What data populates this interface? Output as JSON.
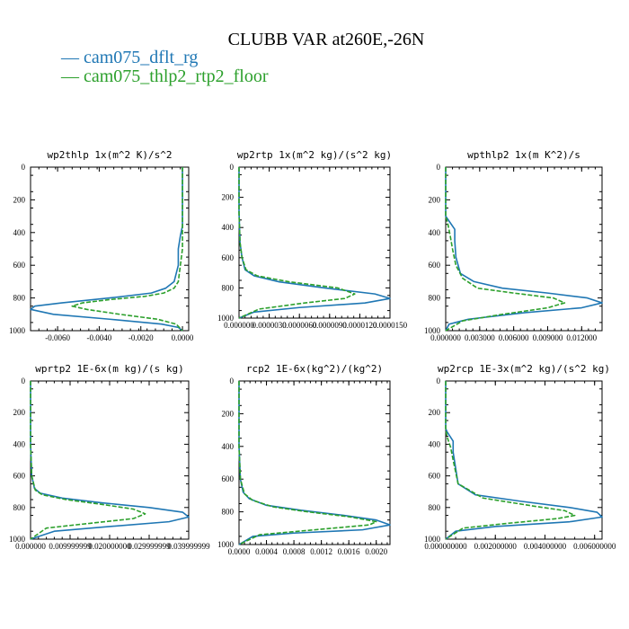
{
  "figure": {
    "title": "CLUBB VAR at260E,-26N"
  },
  "legend": [
    {
      "label": "— cam075_dflt_rg",
      "color": "#1f77b4"
    },
    {
      "label": "— cam075_thlp2_rtp2_floor",
      "color": "#2ca02c"
    }
  ],
  "chart_data": [
    {
      "type": "line",
      "title": "wp2thlp  1x(m^2 K)/s^2",
      "ylim": [
        1000,
        0
      ],
      "yticks": [
        "0",
        "200",
        "400",
        "600",
        "800",
        "1000"
      ],
      "xlim": [
        -0.0073,
        0.0003
      ],
      "xticks": [
        "-0.0060",
        "-0.0040",
        "-0.0020",
        "0.0000"
      ],
      "xtick_values": [
        -0.006,
        -0.004,
        -0.002,
        0.0
      ],
      "series": [
        {
          "name": "cam075_dflt_rg",
          "color": "#1f77b4",
          "dashed": false,
          "x": [
            0.0,
            0.0,
            0.0,
            -0.0001,
            -0.0002,
            -0.0002,
            -0.0004,
            -0.0008,
            -0.0015,
            -0.0035,
            -0.0058,
            -0.0071,
            -0.0073,
            -0.0062,
            -0.0035,
            -0.001,
            -0.0002,
            0.0
          ],
          "y": [
            0,
            300,
            360,
            420,
            500,
            600,
            700,
            740,
            770,
            800,
            830,
            850,
            870,
            900,
            930,
            960,
            980,
            1000
          ]
        },
        {
          "name": "cam075_thlp2_rtp2_floor",
          "color": "#2ca02c",
          "dashed": true,
          "x": [
            0.0,
            0.0,
            0.0,
            0.0,
            -0.0001,
            -0.0002,
            -0.0004,
            -0.0009,
            -0.0018,
            -0.0035,
            -0.0048,
            -0.0053,
            -0.0046,
            -0.003,
            -0.0012,
            -0.0003,
            0.0
          ],
          "y": [
            0,
            300,
            400,
            500,
            600,
            700,
            740,
            770,
            790,
            810,
            830,
            850,
            870,
            900,
            930,
            960,
            1000
          ]
        }
      ]
    },
    {
      "type": "line",
      "title": "wp2rtp  1x(m^2 kg)/(s^2 kg)",
      "ylim": [
        1000,
        0
      ],
      "yticks": [
        "0",
        "200",
        "400",
        "600",
        "800",
        "1000"
      ],
      "xlim": [
        0,
        1.5e-05
      ],
      "xticks": [
        "0.000000",
        "0.0000030",
        "0.0000060",
        "0.0000090",
        "0.0000120",
        "0.0000150"
      ],
      "xtick_values": [
        0,
        3e-06,
        6e-06,
        9e-06,
        1.2e-05,
        1.5e-05
      ],
      "series": [
        {
          "name": "cam075_dflt_rg",
          "color": "#1f77b4",
          "dashed": false,
          "x": [
            0,
            0,
            1e-07,
            3e-07,
            6e-07,
            1.5e-06,
            4e-06,
            8.5e-06,
            1.35e-05,
            1.5e-05,
            1.25e-05,
            6e-06,
            1.5e-06,
            0
          ],
          "y": [
            0,
            300,
            500,
            600,
            680,
            720,
            760,
            800,
            840,
            870,
            900,
            930,
            960,
            1000
          ]
        },
        {
          "name": "cam075_thlp2_rtp2_floor",
          "color": "#2ca02c",
          "dashed": true,
          "x": [
            0,
            0,
            1e-07,
            3e-07,
            7e-07,
            1.8e-06,
            5e-06,
            9.8e-06,
            1.15e-05,
            1.05e-05,
            6.5e-06,
            2e-06,
            0
          ],
          "y": [
            0,
            300,
            500,
            600,
            680,
            720,
            760,
            800,
            840,
            870,
            900,
            940,
            1000
          ]
        }
      ]
    },
    {
      "type": "line",
      "title": "wpthlp2  1x(m K^2)/s",
      "ylim": [
        1000,
        0
      ],
      "yticks": [
        "0",
        "200",
        "400",
        "600",
        "800",
        "1000"
      ],
      "xlim": [
        0,
        0.0138
      ],
      "xticks": [
        "0.000000",
        "0.003000",
        "0.006000",
        "0.009000",
        "0.012000"
      ],
      "xtick_values": [
        0,
        0.003,
        0.006,
        0.009,
        0.012
      ],
      "series": [
        {
          "name": "cam075_dflt_rg",
          "color": "#1f77b4",
          "dashed": false,
          "x": [
            0,
            0,
            0.0002,
            0.0008,
            0.0008,
            0.0009,
            0.0013,
            0.0025,
            0.005,
            0.009,
            0.0125,
            0.0138,
            0.012,
            0.007,
            0.002,
            0.0003,
            0
          ],
          "y": [
            0,
            300,
            320,
            380,
            450,
            550,
            650,
            700,
            740,
            770,
            800,
            830,
            860,
            890,
            930,
            960,
            1000
          ]
        },
        {
          "name": "cam075_thlp2_rtp2_floor",
          "color": "#2ca02c",
          "dashed": true,
          "x": [
            0,
            0,
            0.0002,
            0.0004,
            0.0006,
            0.0009,
            0.0015,
            0.0028,
            0.006,
            0.0095,
            0.0105,
            0.009,
            0.005,
            0.0015,
            0
          ],
          "y": [
            0,
            300,
            350,
            420,
            500,
            600,
            680,
            740,
            770,
            800,
            830,
            860,
            900,
            940,
            1000
          ]
        }
      ]
    },
    {
      "type": "line",
      "title": "wprtp2  1E-6x(m kg)/(s kg)",
      "ylim": [
        1000,
        0
      ],
      "yticks": [
        "0",
        "200",
        "400",
        "600",
        "800",
        "1000"
      ],
      "xlim": [
        0,
        0.04
      ],
      "xticks": [
        "0.000000",
        "0.009999999",
        "0.020000000",
        "0.029999999",
        "0.039999999"
      ],
      "xtick_values": [
        0,
        0.01,
        0.02,
        0.03,
        0.04
      ],
      "series": [
        {
          "name": "cam075_dflt_rg",
          "color": "#1f77b4",
          "dashed": false,
          "x": [
            0,
            0,
            0.0003,
            0.001,
            0.0025,
            0.008,
            0.018,
            0.03,
            0.0385,
            0.04,
            0.035,
            0.02,
            0.006,
            0
          ],
          "y": [
            0,
            400,
            600,
            680,
            710,
            740,
            770,
            800,
            830,
            860,
            890,
            920,
            950,
            1000
          ]
        },
        {
          "name": "cam075_thlp2_rtp2_floor",
          "color": "#2ca02c",
          "dashed": true,
          "x": [
            0,
            0,
            0.0003,
            0.0012,
            0.003,
            0.009,
            0.018,
            0.026,
            0.029,
            0.026,
            0.015,
            0.004,
            0
          ],
          "y": [
            0,
            400,
            600,
            690,
            720,
            750,
            780,
            810,
            840,
            870,
            900,
            930,
            1000
          ]
        }
      ]
    },
    {
      "type": "line",
      "title": "rcp2  1E-6x(kg^2)/(kg^2)",
      "ylim": [
        1000,
        0
      ],
      "yticks": [
        "0",
        "200",
        "400",
        "600",
        "800",
        "1000"
      ],
      "xlim": [
        0,
        0.0022
      ],
      "xticks": [
        "0.0000",
        "0.0004",
        "0.0008",
        "0.0012",
        "0.0016",
        "0.0020"
      ],
      "xtick_values": [
        0,
        0.0004,
        0.0008,
        0.0012,
        0.0016,
        0.002
      ],
      "series": [
        {
          "name": "cam075_dflt_rg",
          "color": "#1f77b4",
          "dashed": false,
          "x": [
            0,
            0,
            2e-05,
            6e-05,
            0.00015,
            0.0004,
            0.0009,
            0.0015,
            0.002,
            0.0022,
            0.0018,
            0.0008,
            0.0002,
            0
          ],
          "y": [
            0,
            400,
            600,
            680,
            720,
            760,
            790,
            820,
            850,
            880,
            910,
            930,
            950,
            1000
          ]
        },
        {
          "name": "cam075_thlp2_rtp2_floor",
          "color": "#2ca02c",
          "dashed": true,
          "x": [
            0,
            0,
            2e-05,
            8e-05,
            0.0002,
            0.0005,
            0.001,
            0.0016,
            0.002,
            0.0019,
            0.0011,
            0.0003,
            0
          ],
          "y": [
            0,
            400,
            600,
            690,
            730,
            770,
            800,
            830,
            860,
            880,
            910,
            940,
            1000
          ]
        }
      ]
    },
    {
      "type": "line",
      "title": "wp2rcp  1E-3x(m^2 kg)/(s^2 kg)",
      "ylim": [
        1000,
        0
      ],
      "yticks": [
        "0",
        "200",
        "400",
        "600",
        "800",
        "1000"
      ],
      "xlim": [
        0,
        0.0063
      ],
      "xticks": [
        "0.000000000",
        "0.002000000",
        "0.004000000",
        "0.006000000"
      ],
      "xtick_values": [
        0,
        0.002,
        0.004,
        0.006
      ],
      "series": [
        {
          "name": "cam075_dflt_rg",
          "color": "#1f77b4",
          "dashed": false,
          "x": [
            0,
            0,
            5e-05,
            0.0003,
            0.0003,
            0.0004,
            0.0005,
            0.0012,
            0.003,
            0.005,
            0.0061,
            0.0063,
            0.005,
            0.002,
            0.0004,
            0
          ],
          "y": [
            0,
            300,
            320,
            380,
            450,
            550,
            650,
            720,
            760,
            800,
            830,
            860,
            890,
            920,
            950,
            1000
          ]
        },
        {
          "name": "cam075_thlp2_rtp2_floor",
          "color": "#2ca02c",
          "dashed": true,
          "x": [
            0,
            0,
            5e-05,
            0.0002,
            0.0003,
            0.0005,
            0.0015,
            0.0035,
            0.0048,
            0.0052,
            0.0045,
            0.0025,
            0.0007,
            0
          ],
          "y": [
            0,
            300,
            350,
            420,
            500,
            650,
            740,
            790,
            820,
            850,
            870,
            900,
            930,
            1000
          ]
        }
      ]
    }
  ]
}
